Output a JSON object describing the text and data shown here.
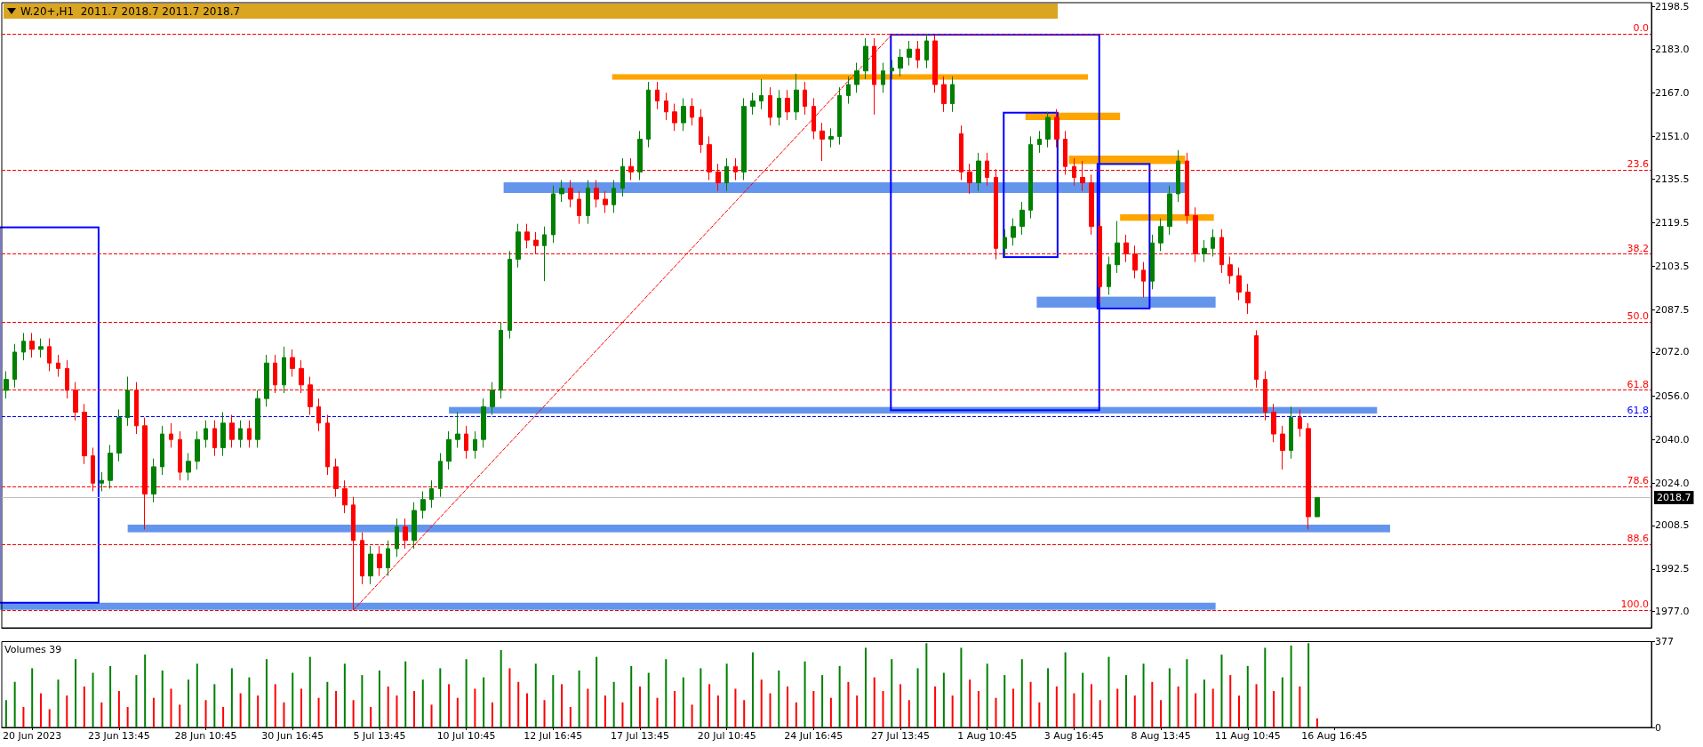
{
  "chart_data": [
    {
      "type": "candlestick",
      "title": "W.20+,H1  2011.7 2018.7 2011.7 2018.7",
      "categories": [
        null,
        null,
        null,
        null,
        null,
        null,
        null,
        null,
        null,
        null,
        null,
        null,
        null,
        null,
        null,
        null,
        null,
        null,
        null,
        null,
        null,
        null,
        null,
        null,
        null,
        null,
        null,
        null,
        null,
        null,
        null,
        null,
        null,
        null,
        null,
        null,
        null,
        null,
        null,
        null,
        null,
        null,
        null,
        null,
        null,
        null,
        null,
        null,
        null,
        null,
        null,
        null,
        null,
        null,
        null,
        null,
        null,
        null,
        null,
        null,
        null,
        null,
        null,
        null,
        null,
        null,
        null,
        null,
        null,
        null,
        null,
        null,
        null,
        null,
        null,
        null,
        null,
        null,
        null,
        null,
        null,
        null,
        null,
        null,
        null,
        null,
        null,
        null,
        null,
        null,
        null,
        null,
        null,
        null,
        null,
        null,
        null,
        null,
        null,
        null,
        null,
        null,
        null,
        null,
        null,
        null,
        null,
        null,
        null,
        null,
        null,
        null,
        null,
        null,
        null,
        null,
        null,
        null,
        null,
        null,
        null,
        null,
        null,
        null,
        null,
        null,
        null,
        null,
        null,
        null,
        null,
        null,
        null,
        null,
        null,
        null,
        null,
        null,
        null,
        null,
        null,
        null,
        null,
        null,
        null,
        null,
        null,
        null,
        null,
        null,
        null,
        null,
        null,
        null,
        null,
        null,
        null,
        null,
        null,
        null,
        null,
        null,
        null,
        null,
        null,
        null,
        null,
        null,
        null,
        null,
        null,
        null,
        null,
        null,
        null,
        null,
        null,
        null,
        null,
        null,
        null,
        null,
        null,
        null,
        null,
        null,
        null,
        null,
        null,
        null
      ],
      "ohlc": [
        [
          2058,
          2065,
          2055,
          2062
        ],
        [
          2062,
          2075,
          2059,
          2072
        ],
        [
          2072,
          2079,
          2069,
          2076
        ],
        [
          2076,
          2079,
          2070,
          2073
        ],
        [
          2073,
          2077,
          2070,
          2074
        ],
        [
          2074,
          2077,
          2065,
          2068
        ],
        [
          2068,
          2071,
          2063,
          2066
        ],
        [
          2066,
          2069,
          2055,
          2058
        ],
        [
          2058,
          2061,
          2047,
          2050
        ],
        [
          2050,
          2053,
          2031,
          2034
        ],
        [
          2034,
          2037,
          2021,
          2024
        ],
        [
          2024,
          2028,
          2021,
          2025
        ],
        [
          2025,
          2038,
          2022,
          2035
        ],
        [
          2035,
          2051,
          2032,
          2048
        ],
        [
          2048,
          2063,
          2045,
          2058
        ],
        [
          2058,
          2061,
          2042,
          2045
        ],
        [
          2045,
          2048,
          2007,
          2020
        ],
        [
          2020,
          2033,
          2017,
          2030
        ],
        [
          2030,
          2045,
          2027,
          2042
        ],
        [
          2042,
          2046,
          2037,
          2040
        ],
        [
          2040,
          2043,
          2025,
          2028
        ],
        [
          2028,
          2035,
          2025,
          2032
        ],
        [
          2032,
          2043,
          2029,
          2040
        ],
        [
          2040,
          2047,
          2037,
          2044
        ],
        [
          2044,
          2047,
          2034,
          2037
        ],
        [
          2037,
          2050,
          2034,
          2046
        ],
        [
          2046,
          2049,
          2037,
          2040
        ],
        [
          2040,
          2047,
          2037,
          2044
        ],
        [
          2044,
          2047,
          2037,
          2040
        ],
        [
          2040,
          2058,
          2037,
          2055
        ],
        [
          2055,
          2071,
          2052,
          2068
        ],
        [
          2068,
          2071,
          2057,
          2060
        ],
        [
          2060,
          2074,
          2057,
          2070
        ],
        [
          2070,
          2073,
          2063,
          2066
        ],
        [
          2066,
          2069,
          2057,
          2060
        ],
        [
          2060,
          2063,
          2049,
          2052
        ],
        [
          2052,
          2055,
          2043,
          2046
        ],
        [
          2046,
          2049,
          2027,
          2030
        ],
        [
          2030,
          2033,
          2019,
          2022
        ],
        [
          2022,
          2025,
          2013,
          2016
        ],
        [
          2016,
          2019,
          1977.5,
          2003
        ],
        [
          2003,
          2006,
          1987,
          1990
        ],
        [
          1990,
          2001,
          1987,
          1998
        ],
        [
          1998,
          2001,
          1990,
          1993
        ],
        [
          1993,
          2003,
          1990,
          2000
        ],
        [
          2000,
          2011,
          1997,
          2008
        ],
        [
          2008,
          2011,
          2000,
          2003
        ],
        [
          2003,
          2017,
          2000,
          2014
        ],
        [
          2014,
          2021,
          2011,
          2018
        ],
        [
          2018,
          2025,
          2015,
          2022
        ],
        [
          2022,
          2035,
          2019,
          2032
        ],
        [
          2032,
          2043,
          2029,
          2040
        ],
        [
          2040,
          2050,
          2037,
          2042
        ],
        [
          2042,
          2045,
          2033,
          2036
        ],
        [
          2036,
          2043,
          2033,
          2040
        ],
        [
          2040,
          2055,
          2037,
          2052
        ],
        [
          2052,
          2061,
          2049,
          2058
        ],
        [
          2058,
          2083,
          2055,
          2080
        ],
        [
          2080,
          2109,
          2077,
          2106
        ],
        [
          2106,
          2119,
          2103,
          2116
        ],
        [
          2116,
          2119,
          2110,
          2113
        ],
        [
          2113,
          2116,
          2108,
          2111
        ],
        [
          2111,
          2118,
          2098,
          2115
        ],
        [
          2115,
          2133,
          2112,
          2130
        ],
        [
          2130,
          2135,
          2127,
          2132
        ],
        [
          2132,
          2135,
          2125,
          2128
        ],
        [
          2128,
          2131,
          2119,
          2122
        ],
        [
          2122,
          2135,
          2119,
          2132
        ],
        [
          2132,
          2135,
          2125,
          2128
        ],
        [
          2128,
          2131,
          2123,
          2126
        ],
        [
          2126,
          2135,
          2123,
          2132
        ],
        [
          2132,
          2143,
          2129,
          2140
        ],
        [
          2140,
          2143,
          2135,
          2138
        ],
        [
          2138,
          2153,
          2135,
          2150
        ],
        [
          2150,
          2171,
          2147,
          2168
        ],
        [
          2168,
          2171,
          2161,
          2164
        ],
        [
          2164,
          2167,
          2157,
          2160
        ],
        [
          2160,
          2163,
          2153,
          2156
        ],
        [
          2156,
          2165,
          2153,
          2162
        ],
        [
          2162,
          2165,
          2155,
          2158
        ],
        [
          2158,
          2161,
          2145,
          2148
        ],
        [
          2148,
          2151,
          2135,
          2138
        ],
        [
          2138,
          2141,
          2131,
          2134
        ],
        [
          2134,
          2143,
          2131,
          2140
        ],
        [
          2140,
          2143,
          2135,
          2138
        ],
        [
          2138,
          2165,
          2135,
          2162
        ],
        [
          2162,
          2167,
          2159,
          2164
        ],
        [
          2164,
          2172,
          2161,
          2166
        ],
        [
          2166,
          2169,
          2155,
          2158
        ],
        [
          2158,
          2168,
          2155,
          2165
        ],
        [
          2165,
          2168,
          2157,
          2160
        ],
        [
          2160,
          2174,
          2157,
          2168
        ],
        [
          2168,
          2171,
          2159,
          2162
        ],
        [
          2162,
          2165,
          2150,
          2153
        ],
        [
          2153,
          2156,
          2142,
          2150
        ],
        [
          2150,
          2154,
          2147,
          2151
        ],
        [
          2151,
          2169,
          2148,
          2166
        ],
        [
          2166,
          2173,
          2163,
          2170
        ],
        [
          2170,
          2178,
          2167,
          2175
        ],
        [
          2175,
          2187,
          2172,
          2184
        ],
        [
          2184,
          2187,
          2159,
          2170
        ],
        [
          2170,
          2178,
          2167,
          2175
        ],
        [
          2175,
          2179,
          2172,
          2176
        ],
        [
          2176,
          2183,
          2173,
          2180
        ],
        [
          2180,
          2186,
          2177,
          2183
        ],
        [
          2183,
          2186,
          2176,
          2179
        ],
        [
          2179,
          2188.5,
          2176,
          2186
        ],
        [
          2186,
          2188,
          2167,
          2170
        ],
        [
          2170,
          2173,
          2160,
          2163
        ],
        [
          2163,
          2173,
          2160,
          2170
        ],
        [
          2152,
          2155,
          2135,
          2138
        ],
        [
          2138,
          2141,
          2130,
          2134
        ],
        [
          2134,
          2145,
          2131,
          2142
        ],
        [
          2142,
          2145,
          2133,
          2136
        ],
        [
          2136,
          2139,
          2106,
          2110
        ],
        [
          2110,
          2117,
          2107,
          2114
        ],
        [
          2114,
          2121,
          2111,
          2118
        ],
        [
          2118,
          2127,
          2115,
          2124
        ],
        [
          2124,
          2151,
          2121,
          2148
        ],
        [
          2148,
          2153,
          2145,
          2150
        ],
        [
          2150,
          2160,
          2147,
          2158
        ],
        [
          2158,
          2161,
          2147,
          2150
        ],
        [
          2150,
          2153,
          2137,
          2140
        ],
        [
          2140,
          2143,
          2133,
          2136
        ],
        [
          2136,
          2142,
          2131,
          2134
        ],
        [
          2134,
          2137,
          2115,
          2118
        ],
        [
          2118,
          2121,
          2090,
          2096
        ],
        [
          2096,
          2107,
          2093,
          2104
        ],
        [
          2104,
          2120,
          2101,
          2112
        ],
        [
          2112,
          2115,
          2105,
          2108
        ],
        [
          2108,
          2111,
          2099,
          2102
        ],
        [
          2102,
          2105,
          2092,
          2098
        ],
        [
          2098,
          2115,
          2095,
          2112
        ],
        [
          2112,
          2121,
          2109,
          2118
        ],
        [
          2118,
          2133,
          2115,
          2130
        ],
        [
          2130,
          2146,
          2127,
          2142
        ],
        [
          2142,
          2145,
          2119,
          2122
        ],
        [
          2122,
          2125,
          2105,
          2108
        ],
        [
          2108,
          2113,
          2105,
          2110
        ],
        [
          2110,
          2117,
          2107,
          2114
        ],
        [
          2114,
          2117,
          2101,
          2104
        ],
        [
          2104,
          2107,
          2097,
          2100
        ],
        [
          2100,
          2103,
          2091,
          2094
        ],
        [
          2094,
          2097,
          2086,
          2090
        ],
        [
          2078,
          2080,
          2059,
          2062
        ],
        [
          2062,
          2065,
          2047,
          2050
        ],
        [
          2050,
          2053,
          2039,
          2042
        ],
        [
          2042,
          2045,
          2029,
          2036
        ],
        [
          2036,
          2052,
          2033,
          2048
        ],
        [
          2048,
          2051,
          2041,
          2044
        ],
        [
          2044,
          2046,
          2007,
          2011.7
        ],
        [
          2011.7,
          2018.7,
          2011.7,
          2018.7
        ],
        null,
        null,
        null,
        null,
        null,
        null,
        null,
        null,
        null,
        null,
        null,
        null,
        null,
        null,
        null,
        null,
        null,
        null,
        null,
        null,
        null,
        null,
        null,
        null,
        null,
        null,
        null,
        null,
        null,
        null,
        null,
        null,
        null,
        null,
        null,
        null,
        null,
        null
      ],
      "colors": [
        "#008000",
        "#008000",
        "#008000",
        "#ff0000",
        "#008000",
        "#ff0000",
        "#ff0000",
        "#ff0000",
        "#ff0000",
        "#ff0000",
        "#ff0000",
        "#008000",
        "#008000",
        "#008000",
        "#008000",
        "#ff0000",
        "#ff0000",
        "#008000",
        "#008000",
        "#ff0000",
        "#ff0000",
        "#008000",
        "#008000",
        "#008000",
        "#ff0000",
        "#008000",
        "#ff0000",
        "#008000",
        "#ff0000",
        "#008000",
        "#008000",
        "#ff0000",
        "#008000",
        "#ff0000",
        "#ff0000",
        "#ff0000",
        "#ff0000",
        "#ff0000",
        "#ff0000",
        "#ff0000",
        "#ff0000",
        "#ff0000",
        "#008000",
        "#ff0000",
        "#008000",
        "#008000",
        "#ff0000",
        "#008000",
        "#008000",
        "#008000",
        "#008000",
        "#008000",
        "#008000",
        "#ff0000",
        "#008000",
        "#008000",
        "#008000",
        "#008000",
        "#008000",
        "#008000",
        "#ff0000",
        "#ff0000",
        "#008000",
        "#008000",
        "#008000",
        "#ff0000",
        "#ff0000",
        "#008000",
        "#ff0000",
        "#ff0000",
        "#008000",
        "#008000",
        "#ff0000",
        "#008000",
        "#008000",
        "#ff0000",
        "#ff0000",
        "#ff0000",
        "#008000",
        "#ff0000",
        "#ff0000",
        "#ff0000",
        "#ff0000",
        "#008000",
        "#ff0000",
        "#008000",
        "#008000",
        "#008000",
        "#ff0000",
        "#008000",
        "#ff0000",
        "#008000",
        "#ff0000",
        "#ff0000",
        "#ff0000",
        "#008000",
        "#008000",
        "#008000",
        "#008000",
        "#008000",
        "#ff0000",
        "#008000",
        "#008000",
        "#008000",
        "#008000",
        "#ff0000",
        "#008000",
        "#ff0000",
        "#ff0000",
        "#008000",
        "#ff0000",
        "#ff0000",
        "#008000",
        "#ff0000",
        "#ff0000",
        "#008000",
        "#008000",
        "#008000",
        "#008000",
        "#008000",
        "#008000",
        "#ff0000",
        "#ff0000",
        "#ff0000",
        "#ff0000",
        "#ff0000",
        "#ff0000",
        "#008000",
        "#008000",
        "#ff0000",
        "#ff0000",
        "#ff0000",
        "#008000",
        "#008000",
        "#008000",
        "#008000",
        "#ff0000",
        "#ff0000",
        "#008000",
        "#008000",
        "#ff0000",
        "#ff0000",
        "#ff0000",
        "#ff0000",
        "#ff0000",
        "#ff0000",
        "#ff0000",
        "#ff0000",
        "#008000",
        "#ff0000",
        "#ff0000",
        "#008000",
        null,
        null,
        null,
        null,
        null,
        null,
        null,
        null,
        null,
        null,
        null,
        null,
        null,
        null,
        null,
        null,
        null,
        null,
        null,
        null,
        null,
        null,
        null,
        null,
        null,
        null,
        null,
        null,
        null,
        null,
        null,
        null,
        null,
        null,
        null,
        null,
        null,
        null
      ],
      "series": [
        {
          "type": "line",
          "color": "#ff0000",
          "line_style": "dashed",
          "values": [
            null,
            null,
            null,
            null,
            null,
            null,
            null,
            null,
            null,
            null,
            null,
            null,
            null,
            null,
            null,
            null,
            null,
            null,
            null,
            null,
            null,
            null,
            null,
            null,
            null,
            null,
            null,
            null,
            null,
            null,
            null,
            null,
            null,
            null,
            null,
            null,
            null,
            null,
            null,
            null,
            1977.5,
            null,
            null,
            null,
            null,
            null,
            null,
            null,
            null,
            null,
            null,
            null,
            null,
            null,
            null,
            null,
            null,
            null,
            null,
            null,
            null,
            null,
            null,
            null,
            null,
            null,
            null,
            null,
            null,
            null,
            null,
            null,
            null,
            null,
            null,
            null,
            null,
            null,
            null,
            null,
            null,
            null,
            null,
            null,
            null,
            null,
            null,
            null,
            null,
            null,
            null,
            null,
            null,
            null,
            null,
            null,
            null,
            null,
            null,
            null,
            null,
            null,
            2188.3,
            null,
            null,
            null,
            null,
            null,
            null,
            null,
            null,
            null,
            null,
            null,
            null,
            null,
            null,
            null,
            null,
            null,
            null,
            null,
            null,
            null,
            null,
            null,
            null,
            null,
            null,
            null,
            null,
            null,
            null,
            null,
            null,
            null,
            null,
            null,
            null,
            null,
            null,
            null,
            null,
            null,
            null,
            null,
            null,
            null,
            null,
            null,
            null,
            null,
            null,
            null,
            null,
            null,
            null,
            null,
            null,
            null,
            null,
            null,
            null,
            null,
            null,
            null,
            null,
            null,
            null,
            null,
            null,
            null,
            null,
            null,
            null,
            null,
            null,
            null,
            null,
            null,
            null,
            null,
            null,
            null,
            null,
            null,
            null,
            null,
            null,
            null
          ]
        }
      ],
      "ref_lines": [
        {
          "axis": "y",
          "value": 2188.5,
          "color": "#ff0000",
          "line_style": "dashed"
        },
        {
          "axis": "y",
          "value": 2138.7,
          "color": "#ff0000",
          "line_style": "dashed"
        },
        {
          "axis": "y",
          "value": 2107.9,
          "color": "#ff0000",
          "line_style": "dashed"
        },
        {
          "axis": "y",
          "value": 2083,
          "color": "#ff0000",
          "line_style": "dashed"
        },
        {
          "axis": "y",
          "value": 2058.1,
          "color": "#ff0000",
          "line_style": "dashed"
        },
        {
          "axis": "y",
          "value": 2048.5,
          "color": "#0000ff",
          "line_style": "dashed"
        },
        {
          "axis": "y",
          "value": 2022.7,
          "color": "#ff0000",
          "line_style": "dashed"
        },
        {
          "axis": "y",
          "value": 2001.6,
          "color": "#ff0000",
          "line_style": "dashed"
        },
        {
          "axis": "y",
          "value": 1977.5,
          "color": "#ff0000",
          "line_style": "dashed"
        },
        {
          "axis": "y",
          "value": 2018.7,
          "label": "2018.7",
          "color": "#c0c0c0",
          "line_style": "solid"
        }
      ],
      "annotations": [
        {
          "text": "0.0",
          "y": 2188.5
        },
        {
          "text": "23.6",
          "y": 2138.7
        },
        {
          "text": "38.2",
          "y": 2107.9
        },
        {
          "text": "50.0",
          "y": 2083
        },
        {
          "text": "61.8",
          "y": 2058.1
        },
        {
          "text": "61.8",
          "y": 2048.5
        },
        {
          "text": "78.6",
          "y": 2022.7
        },
        {
          "text": "88.6",
          "y": 2001.6
        },
        {
          "text": "100.0",
          "y": 1977.5
        }
      ],
      "ylim": [
        1971,
        2200
      ],
      "yticks": [
        {
          "value": 1977,
          "label": "1977.0"
        },
        1992.5,
        2008.5,
        {
          "value": 2024,
          "label": "2024.0"
        },
        {
          "value": 2040,
          "label": "2040.0"
        },
        {
          "value": 2056,
          "label": "2056.0"
        },
        {
          "value": 2072,
          "label": "2072.0"
        },
        2087.5,
        2103.5,
        2119.5,
        2135.5,
        {
          "value": 2151,
          "label": "2151.0"
        },
        {
          "value": 2167,
          "label": "2167.0"
        },
        {
          "value": 2183,
          "label": "2183.0"
        },
        2198.5
      ],
      "tick_labels": "y",
      "grid": false
    },
    {
      "type": "bar",
      "title": "Volumes 39",
      "categories": [
        null,
        null,
        null,
        "20 Jun 2023",
        null,
        null,
        null,
        null,
        null,
        null,
        null,
        null,
        null,
        "23 Jun 13:45",
        null,
        null,
        null,
        null,
        null,
        null,
        null,
        null,
        null,
        "28 Jun 10:45",
        null,
        null,
        null,
        null,
        null,
        null,
        null,
        null,
        null,
        "30 Jun 16:45",
        null,
        null,
        null,
        null,
        null,
        null,
        null,
        null,
        null,
        "5 Jul 13:45",
        null,
        null,
        null,
        null,
        null,
        null,
        null,
        null,
        null,
        "10 Jul 10:45",
        null,
        null,
        null,
        null,
        null,
        null,
        null,
        null,
        null,
        "12 Jul 16:45",
        null,
        null,
        null,
        null,
        null,
        null,
        null,
        null,
        null,
        "17 Jul 13:45",
        null,
        null,
        null,
        null,
        null,
        null,
        null,
        null,
        null,
        "20 Jul 10:45",
        null,
        null,
        null,
        null,
        null,
        null,
        null,
        null,
        null,
        "24 Jul 16:45",
        null,
        null,
        null,
        null,
        null,
        null,
        null,
        null,
        null,
        "27 Jul 13:45",
        null,
        null,
        null,
        null,
        null,
        null,
        null,
        null,
        null,
        "1 Aug 10:45",
        null,
        null,
        null,
        null,
        null,
        null,
        null,
        null,
        null,
        "3 Aug 16:45",
        null,
        null,
        null,
        null,
        null,
        null,
        null,
        null,
        null,
        "8 Aug 13:45",
        null,
        null,
        null,
        null,
        null,
        null,
        null,
        null,
        null,
        "11 Aug 10:45",
        null,
        null,
        null,
        null,
        null,
        null,
        null,
        null,
        null,
        "16 Aug 16:45",
        null,
        null,
        null,
        null,
        null,
        null,
        null,
        null,
        null,
        null,
        null,
        null,
        null,
        null,
        null,
        null,
        null,
        null,
        null,
        null,
        null,
        null,
        null,
        null,
        null,
        null,
        null,
        null,
        null,
        null,
        null,
        null,
        null,
        null,
        null,
        null
      ],
      "values": [
        120,
        200,
        90,
        260,
        150,
        80,
        210,
        140,
        300,
        180,
        240,
        110,
        270,
        160,
        90,
        230,
        320,
        130,
        250,
        170,
        100,
        210,
        280,
        120,
        190,
        90,
        260,
        150,
        220,
        140,
        300,
        190,
        110,
        240,
        170,
        310,
        130,
        200,
        160,
        280,
        120,
        230,
        90,
        250,
        180,
        140,
        290,
        160,
        210,
        100,
        260,
        190,
        130,
        300,
        170,
        220,
        110,
        340,
        260,
        200,
        150,
        280,
        120,
        230,
        190,
        90,
        250,
        170,
        310,
        140,
        200,
        110,
        270,
        180,
        240,
        130,
        300,
        160,
        220,
        100,
        260,
        190,
        140,
        280,
        170,
        120,
        330,
        210,
        150,
        250,
        180,
        110,
        290,
        160,
        230,
        130,
        270,
        200,
        140,
        350,
        220,
        160,
        300,
        190,
        120,
        260,
        370,
        180,
        240,
        140,
        350,
        210,
        160,
        280,
        130,
        230,
        170,
        300,
        200,
        110,
        260,
        180,
        330,
        150,
        240,
        190,
        120,
        310,
        170,
        230,
        140,
        280,
        200,
        120,
        260,
        180,
        300,
        150,
        210,
        170,
        320,
        230,
        140,
        270,
        190,
        350,
        160,
        220,
        360,
        180,
        370,
        40,
        null,
        null,
        null,
        null,
        null,
        null,
        null,
        null,
        null,
        null,
        null,
        null,
        null,
        null,
        null,
        null,
        null,
        null,
        null,
        null,
        null,
        null,
        null,
        null,
        null,
        null,
        null,
        null,
        null,
        null,
        null,
        null,
        null,
        null,
        null,
        null,
        null,
        null
      ],
      "colors": [
        "#008000",
        "#008000",
        "#ff0000",
        "#008000",
        "#ff0000",
        "#ff0000",
        "#008000",
        "#ff0000",
        "#008000",
        "#ff0000",
        "#008000",
        "#ff0000",
        "#008000",
        "#ff0000",
        "#ff0000",
        "#008000",
        "#008000",
        "#ff0000",
        "#008000",
        "#ff0000",
        "#ff0000",
        "#008000",
        "#008000",
        "#ff0000",
        "#008000",
        "#ff0000",
        "#008000",
        "#ff0000",
        "#008000",
        "#ff0000",
        "#008000",
        "#ff0000",
        "#ff0000",
        "#008000",
        "#ff0000",
        "#008000",
        "#ff0000",
        "#008000",
        "#ff0000",
        "#008000",
        "#ff0000",
        "#008000",
        "#ff0000",
        "#008000",
        "#ff0000",
        "#ff0000",
        "#008000",
        "#ff0000",
        "#008000",
        "#ff0000",
        "#008000",
        "#ff0000",
        "#ff0000",
        "#008000",
        "#ff0000",
        "#008000",
        "#ff0000",
        "#008000",
        "#ff0000",
        "#ff0000",
        "#ff0000",
        "#008000",
        "#ff0000",
        "#008000",
        "#ff0000",
        "#ff0000",
        "#008000",
        "#ff0000",
        "#008000",
        "#ff0000",
        "#008000",
        "#ff0000",
        "#008000",
        "#ff0000",
        "#008000",
        "#ff0000",
        "#008000",
        "#ff0000",
        "#008000",
        "#ff0000",
        "#008000",
        "#ff0000",
        "#ff0000",
        "#008000",
        "#ff0000",
        "#ff0000",
        "#008000",
        "#ff0000",
        "#ff0000",
        "#008000",
        "#ff0000",
        "#ff0000",
        "#008000",
        "#ff0000",
        "#008000",
        "#ff0000",
        "#008000",
        "#ff0000",
        "#ff0000",
        "#008000",
        "#ff0000",
        "#ff0000",
        "#008000",
        "#ff0000",
        "#ff0000",
        "#008000",
        "#008000",
        "#ff0000",
        "#008000",
        "#ff0000",
        "#008000",
        "#ff0000",
        "#ff0000",
        "#008000",
        "#ff0000",
        "#008000",
        "#ff0000",
        "#008000",
        "#ff0000",
        "#ff0000",
        "#008000",
        "#ff0000",
        "#008000",
        "#ff0000",
        "#008000",
        "#ff0000",
        "#ff0000",
        "#008000",
        "#ff0000",
        "#008000",
        "#ff0000",
        "#008000",
        "#ff0000",
        "#ff0000",
        "#008000",
        "#ff0000",
        "#008000",
        "#ff0000",
        "#008000",
        "#ff0000",
        "#008000",
        "#ff0000",
        "#ff0000",
        "#008000",
        "#ff0000",
        "#008000",
        "#ff0000",
        "#008000",
        "#008000",
        "#ff0000",
        "#008000",
        "#ff0000",
        null,
        null,
        null,
        null,
        null,
        null,
        null,
        null,
        null,
        null,
        null,
        null,
        null,
        null,
        null,
        null,
        null,
        null,
        null,
        null,
        null,
        null,
        null,
        null,
        null,
        null,
        null,
        null,
        null,
        null,
        null,
        null,
        null,
        null,
        null,
        null,
        null,
        null
      ],
      "ylim": [
        0,
        377
      ],
      "yticks": [
        0,
        377
      ],
      "grid": false
    }
  ]
}
